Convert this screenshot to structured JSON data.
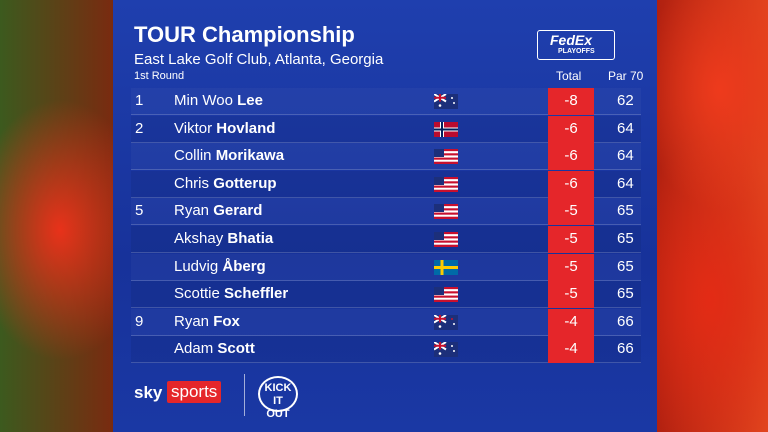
{
  "header": {
    "title": "TOUR Championship",
    "subtitle": "East Lake Golf Club, Atlanta, Georgia",
    "round": "1st Round",
    "columns": [
      "Total",
      "Par 70"
    ]
  },
  "sponsor": {
    "brand": "FedEx",
    "event": "PLAYOFFS"
  },
  "table": {
    "rows": [
      {
        "position": 1,
        "first": "Min Woo",
        "last": "Lee",
        "total": -8,
        "score": 62
      },
      {
        "position": 2,
        "first": "Viktor",
        "last": "Hovland",
        "total": -6,
        "score": 64
      },
      {
        "first": "Collin",
        "last": "Morikawa",
        "total": -6,
        "score": 64
      },
      {
        "first": "Chris",
        "last": "Gotterup",
        "total": -6,
        "score": 64
      },
      {
        "position": 5,
        "first": "Ryan",
        "last": "Gerard",
        "total": -5,
        "score": 65
      },
      {
        "first": "Akshay",
        "last": "Bhatia",
        "total": -5,
        "score": 65
      },
      {
        "first": "Ludvig",
        "last": "Åberg",
        "total": -5,
        "score": 65
      },
      {
        "first": "Scottie",
        "last": "Scheffler",
        "total": -5,
        "score": 65
      },
      {
        "position": 9,
        "first": "Ryan",
        "last": "Fox",
        "total": -4,
        "score": 66
      },
      {
        "first": "Adam",
        "last": "Scott",
        "total": -4,
        "score": 66
      }
    ]
  },
  "footer": {
    "sky": "sky",
    "sports": "sports",
    "campaign": "KICK IT OUT"
  }
}
